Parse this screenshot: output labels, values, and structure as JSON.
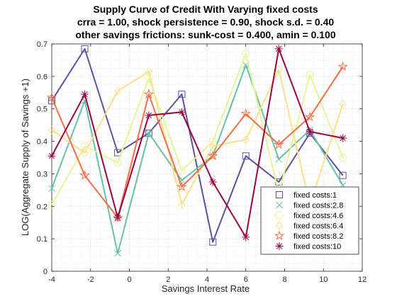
{
  "chart_data": {
    "type": "line",
    "title_lines": [
      "Supply Curve of Credit With Varying fixed costs",
      "crra = 1.00, shock persistence = 0.90, shock s.d. = 0.40",
      "other savings frictions: sunk-cost = 0.400, amin = 0.100"
    ],
    "xlabel": "Savings Interest Rate",
    "ylabel": "LOG(Aggregate Supply of Savings +1)",
    "xlim": [
      -4,
      12
    ],
    "ylim": [
      0,
      0.7
    ],
    "xticks": [
      -4,
      -2,
      0,
      2,
      4,
      6,
      8,
      10,
      12
    ],
    "yticks": [
      0,
      0.1,
      0.2,
      0.3,
      0.4,
      0.5,
      0.6,
      0.7
    ],
    "grid": "dotted, with minor grid",
    "legend_position": "bottom-right",
    "x": [
      -4.0,
      -2.3,
      -0.6,
      1.0,
      2.7,
      4.3,
      6.0,
      7.7,
      9.3,
      11.0
    ],
    "series": [
      {
        "name": "fixed costs:1",
        "color": "#5e4fa2",
        "marker": "square",
        "values": [
          0.525,
          0.685,
          0.365,
          0.425,
          0.545,
          0.09,
          0.355,
          0.275,
          0.425,
          0.295
        ]
      },
      {
        "name": "fixed costs:2.8",
        "color": "#66c2a5",
        "marker": "x",
        "values": [
          0.255,
          0.525,
          0.055,
          0.425,
          0.28,
          0.355,
          0.635,
          0.345,
          0.435,
          0.265
        ]
      },
      {
        "name": "fixed costs:4.6",
        "color": "#e6f598",
        "marker": "circle",
        "values": [
          0.205,
          0.385,
          0.335,
          0.595,
          0.31,
          0.4,
          0.67,
          0.24,
          0.605,
          0.35
        ]
      },
      {
        "name": "fixed costs:6.4",
        "color": "#fee08b",
        "marker": "diamond",
        "values": [
          0.435,
          0.365,
          0.555,
          0.615,
          0.205,
          0.385,
          0.405,
          0.62,
          0.205,
          0.515
        ]
      },
      {
        "name": "fixed costs:8.2",
        "color": "#f46d43",
        "marker": "pentagram",
        "values": [
          0.535,
          0.295,
          0.165,
          0.545,
          0.26,
          0.355,
          0.485,
          0.39,
          0.475,
          0.63
        ]
      },
      {
        "name": "fixed costs:10",
        "color": "#9e0142",
        "marker": "asterisk",
        "values": [
          0.355,
          0.545,
          0.165,
          0.48,
          0.49,
          0.275,
          0.105,
          0.685,
          0.43,
          0.41
        ]
      }
    ]
  }
}
